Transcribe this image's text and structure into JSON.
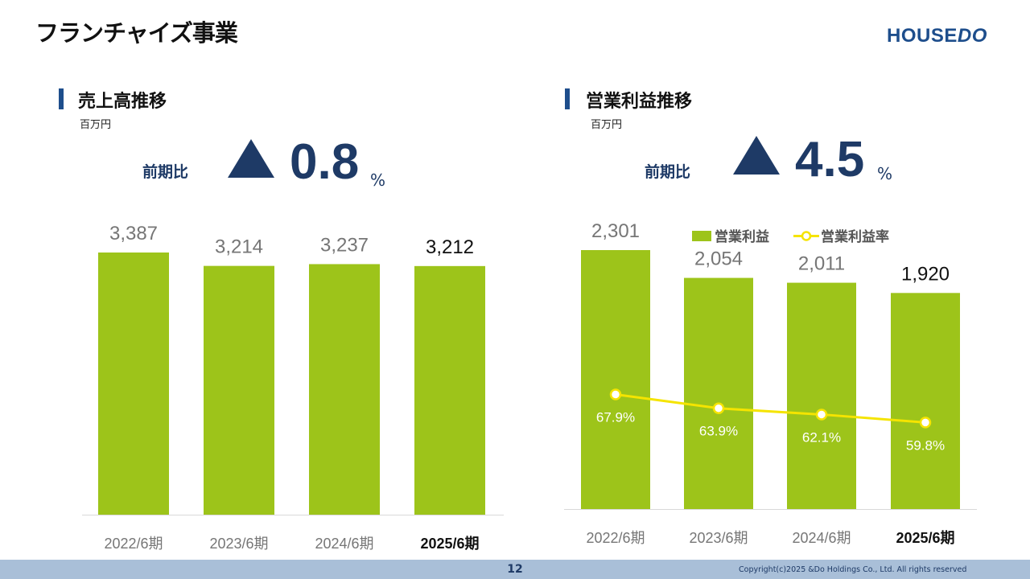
{
  "header": {
    "title": "フランチャイズ事業",
    "logo_main": "HOUSE",
    "logo_accent": "DO"
  },
  "sections": {
    "sales": {
      "title": "売上高推移",
      "unit": "百万円",
      "yoy_label": "前期比",
      "yoy_value": "0.8",
      "yoy_unit": "%"
    },
    "profit": {
      "title": "営業利益推移",
      "unit": "百万円",
      "yoy_label": "前期比",
      "yoy_value": "4.5",
      "yoy_unit": "%"
    }
  },
  "chart_data": [
    {
      "type": "bar",
      "categories": [
        "2022/6期",
        "2023/6期",
        "2024/6期",
        "2025/6期"
      ],
      "values": [
        3387,
        3214,
        3237,
        3212
      ],
      "value_labels": [
        "3,387",
        "3,214",
        "3,237",
        "3,212"
      ],
      "highlight_index": 3,
      "ylim": [
        0,
        3387
      ],
      "colors": {
        "bar": "#9dc41a",
        "label": "#767676",
        "label_highlight": "#111111"
      }
    },
    {
      "type": "bar",
      "categories": [
        "2022/6期",
        "2023/6期",
        "2024/6期",
        "2025/6期"
      ],
      "series": [
        {
          "name": "営業利益",
          "type": "bar",
          "values": [
            2301,
            2054,
            2011,
            1920
          ],
          "labels": [
            "2,301",
            "2,054",
            "2,011",
            "1,920"
          ]
        },
        {
          "name": "営業利益率",
          "type": "line",
          "values": [
            67.9,
            63.9,
            62.1,
            59.8
          ],
          "labels": [
            "67.9%",
            "63.9%",
            "62.1%",
            "59.8%"
          ]
        }
      ],
      "highlight_index": 3,
      "ylim": [
        0,
        2301
      ],
      "legend_position": "top",
      "colors": {
        "bar": "#9dc41a",
        "line": "#f5e400",
        "label": "#767676",
        "label_highlight": "#111111",
        "line_label": "#ffffff"
      }
    }
  ],
  "footer": {
    "page": "12",
    "copyright": "Copyright(c)2025 &Do Holdings Co., Ltd. All rights reserved"
  }
}
